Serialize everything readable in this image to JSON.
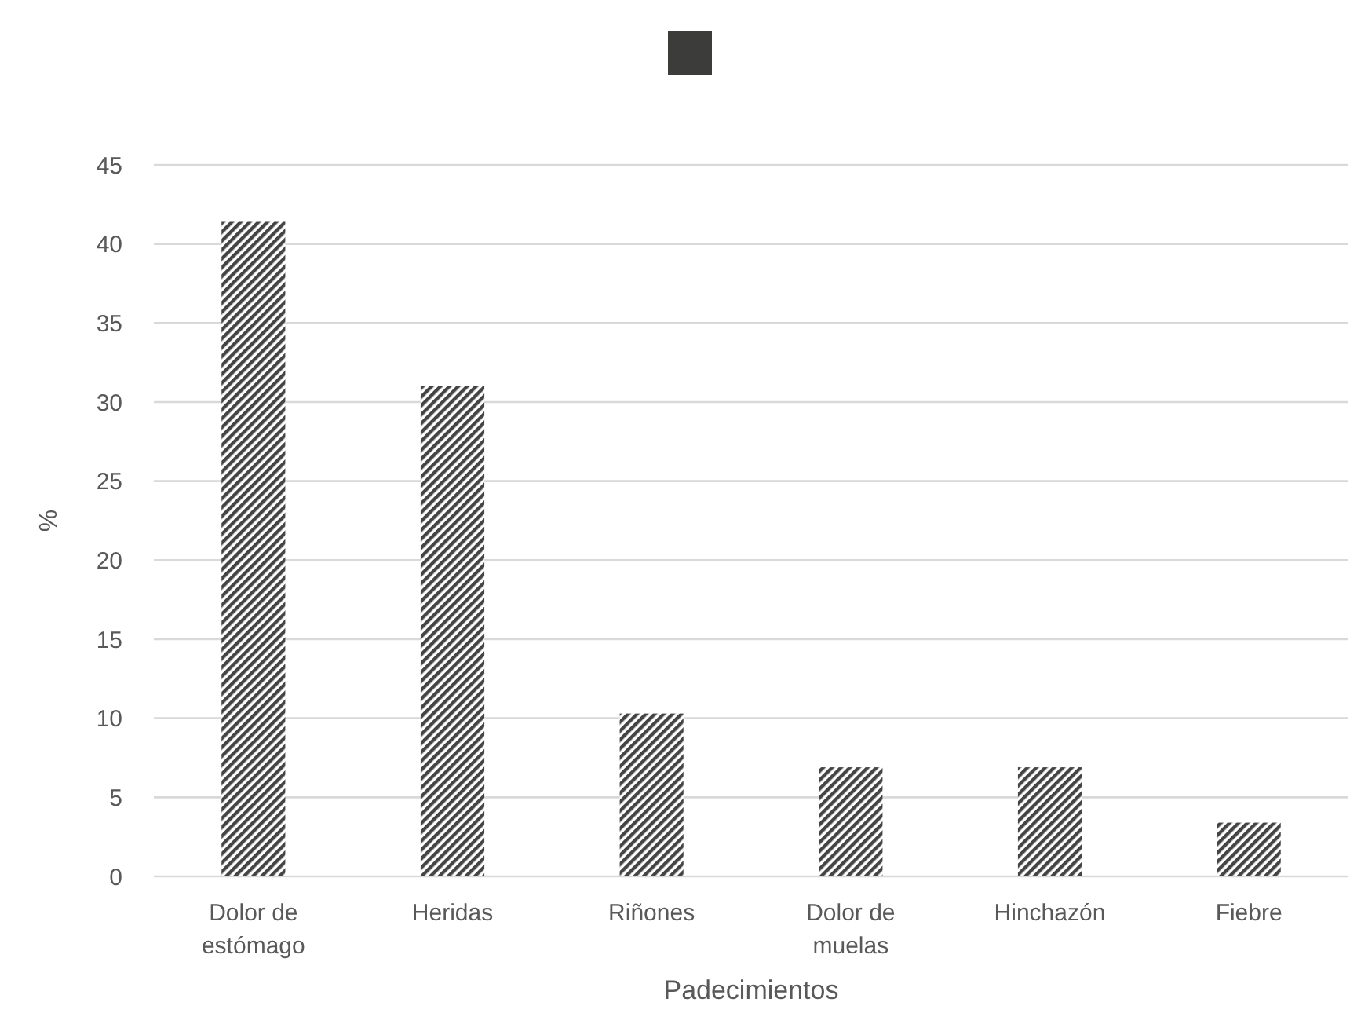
{
  "chart_data": {
    "type": "bar",
    "xlabel": "Padecimientos",
    "ylabel": "%",
    "categories": [
      "Dolor de estómago",
      "Heridas",
      "Riñones",
      "Dolor de muelas",
      "Hinchazón",
      "Fiebre"
    ],
    "series": [
      {
        "color": "#444444",
        "values": [
          41.4,
          31.0,
          10.3,
          6.9,
          6.9,
          3.4
        ]
      }
    ],
    "ylim": [
      0,
      45
    ],
    "yticks": [
      0,
      5,
      10,
      15,
      20,
      25,
      30,
      35,
      40,
      45
    ],
    "grid": "y"
  }
}
